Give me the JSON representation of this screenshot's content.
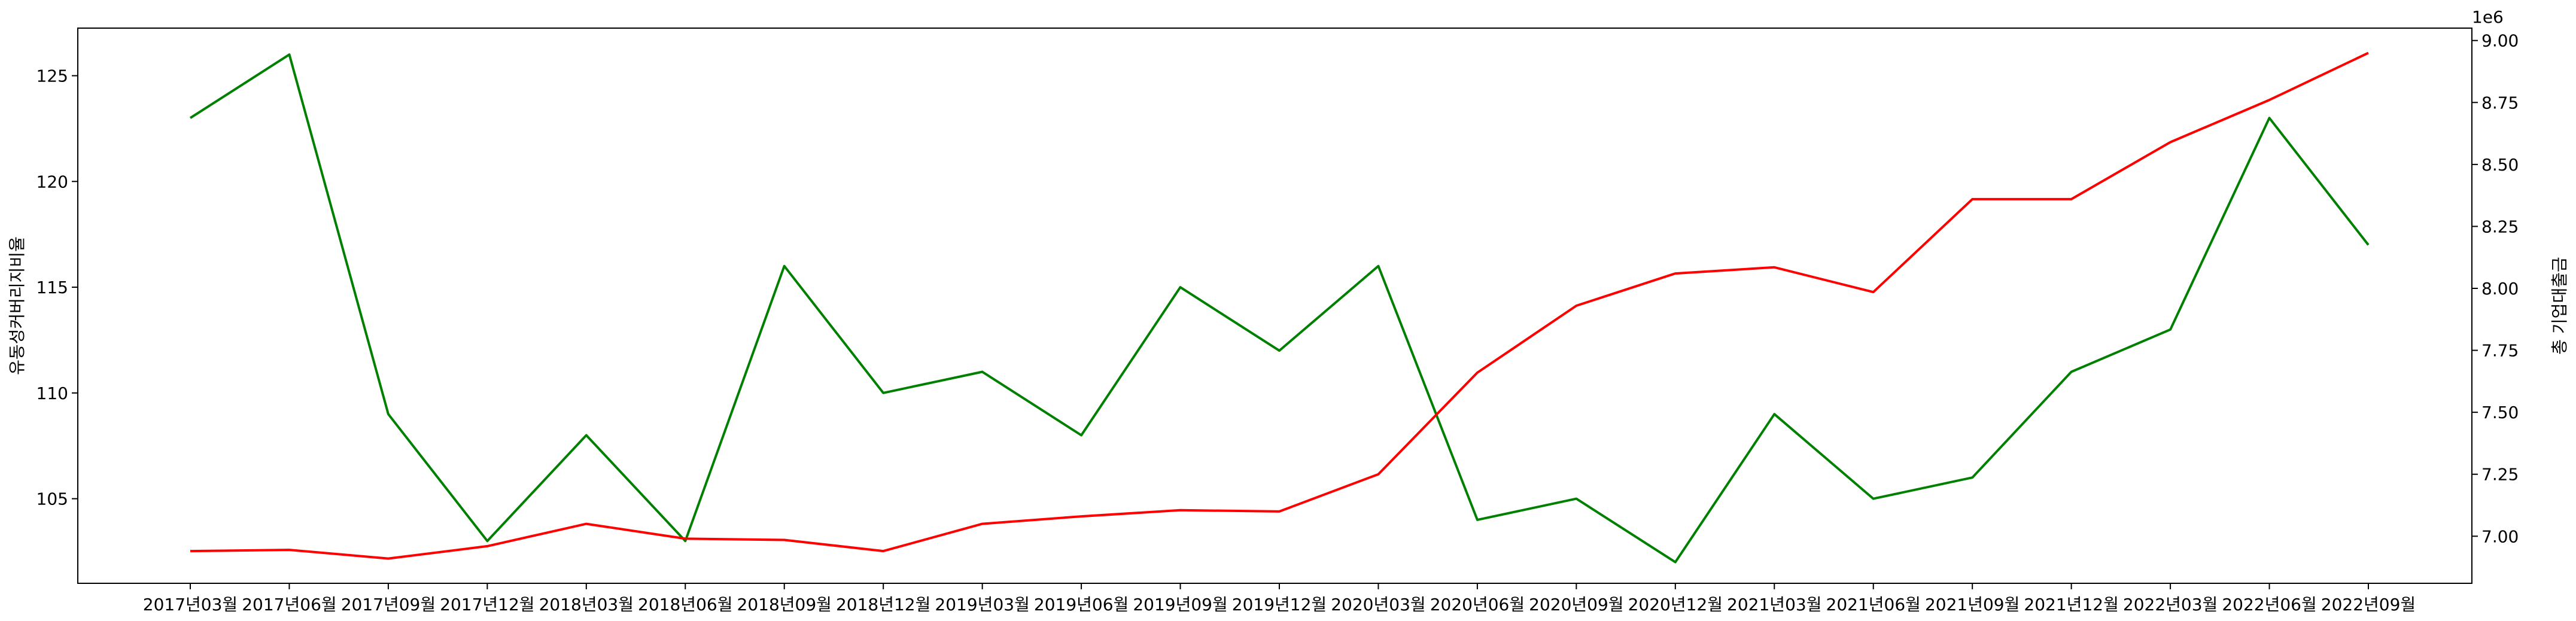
{
  "chart_data": {
    "type": "line",
    "categories": [
      "2017년03월",
      "2017년06월",
      "2017년09월",
      "2017년12월",
      "2018년03월",
      "2018년06월",
      "2018년09월",
      "2018년12월",
      "2019년03월",
      "2019년06월",
      "2019년09월",
      "2019년12월",
      "2020년03월",
      "2020년06월",
      "2020년09월",
      "2020년12월",
      "2021년03월",
      "2021년06월",
      "2021년09월",
      "2021년12월",
      "2022년03월",
      "2022년06월",
      "2022년09월"
    ],
    "series": [
      {
        "axis": "left",
        "color": "#008000",
        "values": [
          123,
          126,
          109,
          103,
          108,
          103,
          116,
          110,
          111,
          108,
          115,
          112,
          116,
          104,
          105,
          102,
          109,
          105,
          106,
          111,
          113,
          123,
          117
        ]
      },
      {
        "axis": "right",
        "color": "#ff0000",
        "values": [
          6.94,
          6.945,
          6.91,
          6.96,
          7.05,
          6.99,
          6.985,
          6.94,
          7.05,
          7.08,
          7.105,
          7.1,
          7.25,
          7.66,
          7.93,
          8.06,
          8.085,
          7.985,
          8.36,
          8.36,
          8.59,
          8.76,
          8.95
        ]
      }
    ],
    "ylabel": "유동성커버리지비율",
    "y2label": "총 기업대출금",
    "y2_offset_text": "1e6",
    "ylim": [
      101,
      127.25
    ],
    "y2lim": [
      6.81,
      9.05
    ],
    "yticks": [
      105,
      110,
      115,
      120,
      125
    ],
    "y2ticks": [
      "7.00",
      "7.25",
      "7.50",
      "7.75",
      "8.00",
      "8.25",
      "8.50",
      "8.75",
      "9.00"
    ],
    "grid": false,
    "legend": "none"
  }
}
